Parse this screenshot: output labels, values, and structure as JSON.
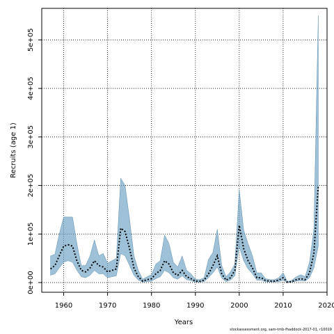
{
  "chart_data": {
    "type": "line",
    "xlabel": "Years",
    "ylabel": "Recruits (age 1)",
    "xlim": [
      1955,
      2020
    ],
    "ylim": [
      -20000,
      565000
    ],
    "x_ticks": [
      1960,
      1970,
      1980,
      1990,
      2000,
      2010,
      2020
    ],
    "y_ticks": [
      0,
      100000,
      200000,
      300000,
      400000,
      500000
    ],
    "y_tick_labels": [
      "0e+00",
      "1e+05",
      "2e+05",
      "3e+05",
      "4e+05",
      "5e+05"
    ],
    "grid": true,
    "x": [
      1957,
      1958,
      1959,
      1960,
      1961,
      1962,
      1963,
      1964,
      1965,
      1966,
      1967,
      1968,
      1969,
      1970,
      1971,
      1972,
      1973,
      1974,
      1975,
      1976,
      1977,
      1978,
      1979,
      1980,
      1981,
      1982,
      1983,
      1984,
      1985,
      1986,
      1987,
      1988,
      1989,
      1990,
      1991,
      1992,
      1993,
      1994,
      1995,
      1996,
      1997,
      1998,
      1999,
      2000,
      2001,
      2002,
      2003,
      2004,
      2005,
      2006,
      2007,
      2008,
      2009,
      2010,
      2011,
      2012,
      2013,
      2014,
      2015,
      2016,
      2017,
      2018
    ],
    "series": [
      {
        "values": [
          28000,
          35000,
          55000,
          75000,
          78000,
          75000,
          45000,
          25000,
          22000,
          30000,
          45000,
          35000,
          32000,
          22000,
          25000,
          28000,
          112000,
          105000,
          70000,
          30000,
          12000,
          3000,
          6000,
          8000,
          18000,
          25000,
          45000,
          38000,
          20000,
          15000,
          25000,
          12000,
          8000,
          3000,
          2500,
          5000,
          18000,
          35000,
          55000,
          18000,
          5000,
          10000,
          25000,
          118000,
          70000,
          45000,
          30000,
          10000,
          10000,
          4000,
          3000,
          3000,
          5000,
          10000,
          500,
          2000,
          6000,
          8000,
          6000,
          20000,
          60000,
          200000
        ]
      }
    ],
    "confidence_band": {
      "lower": [
        15000,
        18000,
        30000,
        42000,
        45000,
        42000,
        25000,
        12000,
        10000,
        15000,
        25000,
        18000,
        18000,
        10000,
        12000,
        14000,
        60000,
        55000,
        35000,
        15000,
        5000,
        1000,
        2000,
        3000,
        8000,
        12000,
        25000,
        20000,
        10000,
        7000,
        14000,
        6000,
        4000,
        1000,
        1000,
        2000,
        10000,
        20000,
        32000,
        9000,
        2000,
        5000,
        14000,
        75000,
        45000,
        28000,
        18000,
        5000,
        5000,
        1500,
        1200,
        1200,
        2000,
        5000,
        100,
        800,
        3000,
        4000,
        3000,
        10000,
        30000,
        75000
      ],
      "upper": [
        55000,
        58000,
        100000,
        135000,
        135000,
        135000,
        80000,
        35000,
        35000,
        55000,
        88000,
        55000,
        60000,
        40000,
        45000,
        50000,
        215000,
        200000,
        130000,
        55000,
        25000,
        7000,
        12000,
        16000,
        38000,
        45000,
        98000,
        80000,
        42000,
        32000,
        55000,
        25000,
        18000,
        7000,
        6000,
        10000,
        48000,
        62000,
        110000,
        35000,
        12000,
        22000,
        38000,
        192000,
        108000,
        80000,
        55000,
        20000,
        20000,
        8000,
        6000,
        6000,
        10000,
        20000,
        1500,
        5000,
        12000,
        16000,
        12000,
        42000,
        110000,
        550000
      ]
    },
    "colors": {
      "band": "#6a9fc1",
      "line": "#000000"
    }
  },
  "footer": "stockassessment.org, sam-tmb-fhaddock-2017-01, r10019"
}
